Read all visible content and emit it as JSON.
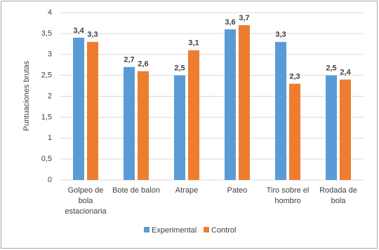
{
  "chart_data": {
    "type": "bar",
    "y_label": "Puntuaciones brutas",
    "categories": [
      "Golpeo de bola estacionaria",
      "Bote de balon",
      "Atrape",
      "Pateo",
      "Tiro sobre el hombro",
      "Rodada de bola"
    ],
    "series": [
      {
        "name": "Experimental",
        "color": "#5b9bd5",
        "values": [
          3.4,
          2.7,
          2.5,
          3.6,
          3.3,
          2.5
        ],
        "value_labels": [
          "3,4",
          "2,7",
          "2,5",
          "3,6",
          "3,3",
          "2,5"
        ]
      },
      {
        "name": "Control",
        "color": "#ed7d31",
        "values": [
          3.3,
          2.6,
          3.1,
          3.7,
          2.3,
          2.4
        ],
        "value_labels": [
          "3,3",
          "2,6",
          "3,1",
          "3,7",
          "2,3",
          "2,4"
        ]
      }
    ],
    "ylim": [
      0,
      4
    ],
    "yticks": [
      0,
      {
        "value": 0.5,
        "label": "0,5"
      },
      1,
      {
        "value": 1.5,
        "label": "1,5"
      },
      2,
      {
        "value": 2.5,
        "label": "2,5"
      },
      3,
      {
        "value": 3.5,
        "label": "3,5"
      },
      4
    ],
    "grid": true,
    "legend": "bottom"
  }
}
